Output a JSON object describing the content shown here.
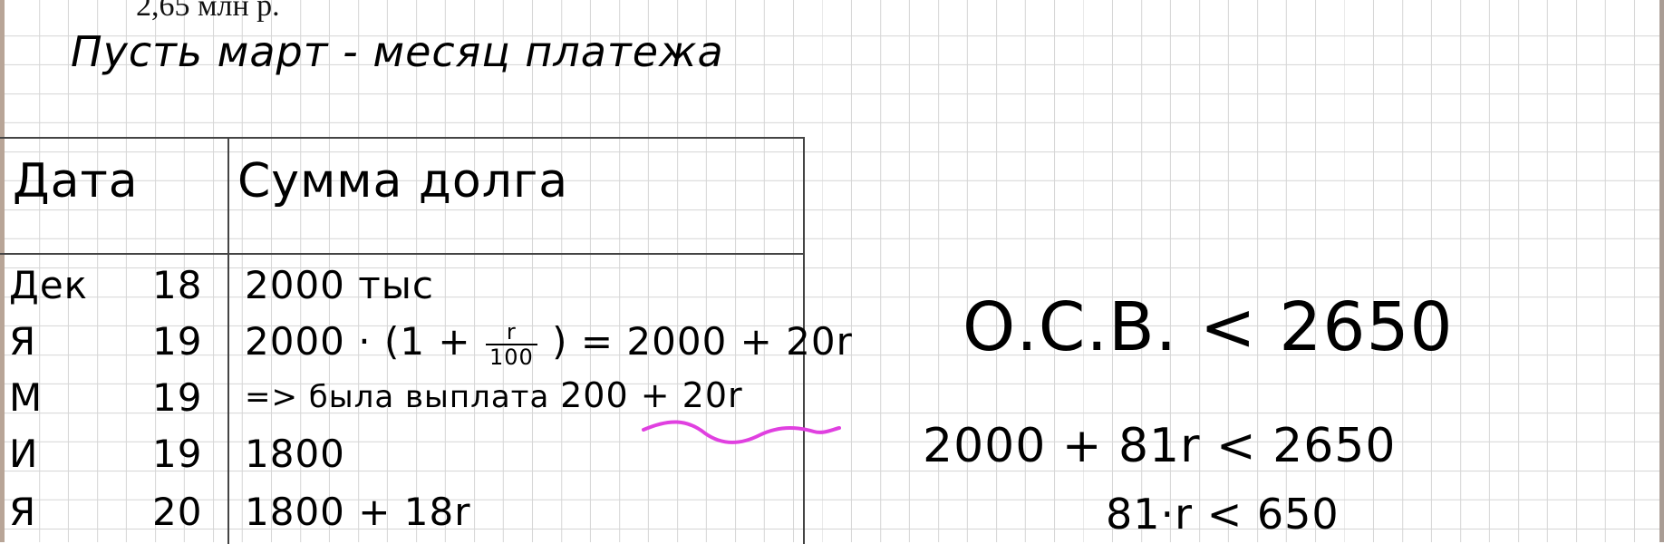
{
  "printed_header": "2,65 млн р.",
  "heading": "Пусть март - месяц платежа",
  "table": {
    "headers": {
      "date": "Дата",
      "sum": "Сумма долга"
    },
    "rows": [
      {
        "month": "Дек",
        "year": "18",
        "amount": "2000 тыс"
      },
      {
        "month": "Я",
        "year": "19",
        "amount_prefix": "2000 · (1 +",
        "frac_num": "r",
        "frac_den": "100",
        "amount_suffix": ") = 2000 + 20r"
      },
      {
        "month": "М",
        "year": "19",
        "amount_prefix": "=> была выплата",
        "amount_highlight": "200 + 20r"
      },
      {
        "month": "И",
        "year": "19",
        "amount": "1800"
      },
      {
        "month": "Я",
        "year": "20",
        "amount": "1800 + 18r"
      }
    ]
  },
  "work": {
    "line1": "О.С.В. < 2650",
    "line2": "2000 + 81r < 2650",
    "line3": "81·r < 650"
  },
  "colors": {
    "highlight_squiggle": "#e040e0",
    "ink": "#000000",
    "grid": "#d6d6d6"
  }
}
